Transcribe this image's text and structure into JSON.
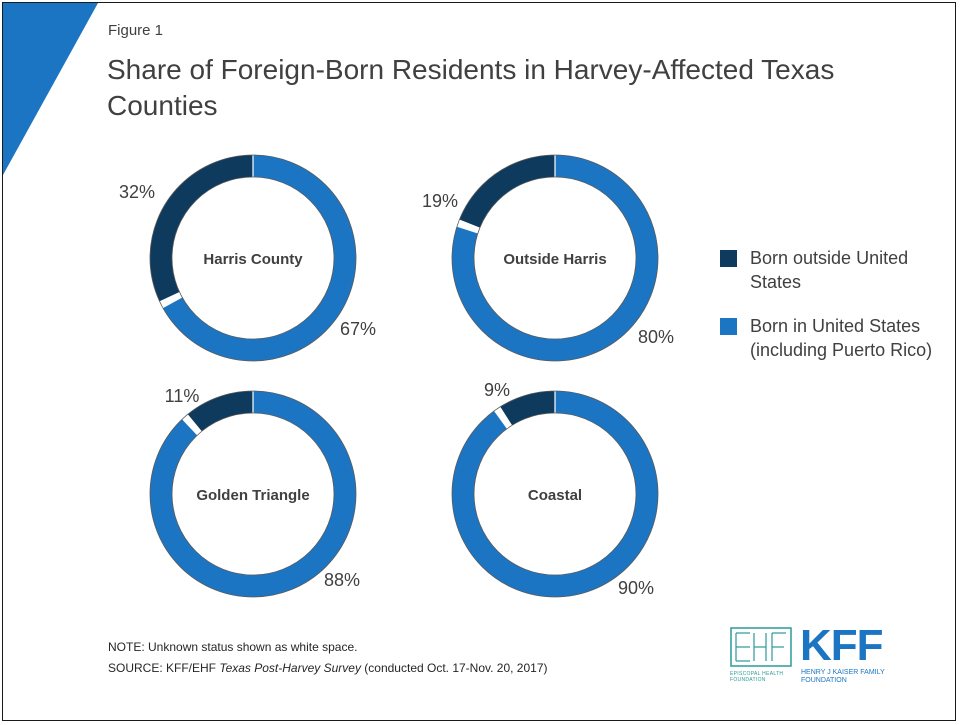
{
  "figure_label": "Figure 1",
  "title": "Share of Foreign-Born Residents in Harvey-Affected Texas Counties",
  "colors": {
    "born_outside": "#0e3a5e",
    "born_in": "#1c75c2",
    "unknown": "#ffffff",
    "accent_triangle": "#1c75c2"
  },
  "legend": [
    {
      "label": "Born outside United States",
      "color": "#0e3a5e"
    },
    {
      "label": "Born in United States (including Puerto Rico)",
      "color": "#1c75c2"
    }
  ],
  "chart_data": [
    {
      "type": "pie",
      "title": "Harris County",
      "series": [
        {
          "name": "Born outside United States",
          "value": 32,
          "label": "32%"
        },
        {
          "name": "Born in United States (including Puerto Rico)",
          "value": 67,
          "label": "67%"
        },
        {
          "name": "Unknown",
          "value": 1
        }
      ]
    },
    {
      "type": "pie",
      "title": "Outside Harris",
      "series": [
        {
          "name": "Born outside United States",
          "value": 19,
          "label": "19%"
        },
        {
          "name": "Born in United States (including Puerto Rico)",
          "value": 80,
          "label": "80%"
        },
        {
          "name": "Unknown",
          "value": 1
        }
      ]
    },
    {
      "type": "pie",
      "title": "Golden Triangle",
      "series": [
        {
          "name": "Born outside United States",
          "value": 11,
          "label": "11%"
        },
        {
          "name": "Born in United States (including Puerto Rico)",
          "value": 88,
          "label": "88%"
        },
        {
          "name": "Unknown",
          "value": 1
        }
      ]
    },
    {
      "type": "pie",
      "title": "Coastal",
      "series": [
        {
          "name": "Born outside United States",
          "value": 9,
          "label": "9%"
        },
        {
          "name": "Born in United States (including Puerto Rico)",
          "value": 90,
          "label": "90%"
        },
        {
          "name": "Unknown",
          "value": 1
        }
      ]
    }
  ],
  "note": "NOTE: Unknown status shown as white space.",
  "source": {
    "prefix": "SOURCE: KFF/EHF ",
    "italic": "Texas Post-Harvey Survey",
    "suffix": " (conducted Oct. 17-Nov. 20, 2017)"
  },
  "logo": {
    "ehf_text": "EPISCOPAL HEALTH FOUNDATION",
    "kff_text": "KFF",
    "kff_sub": "HENRY J KAISER FAMILY FOUNDATION"
  }
}
